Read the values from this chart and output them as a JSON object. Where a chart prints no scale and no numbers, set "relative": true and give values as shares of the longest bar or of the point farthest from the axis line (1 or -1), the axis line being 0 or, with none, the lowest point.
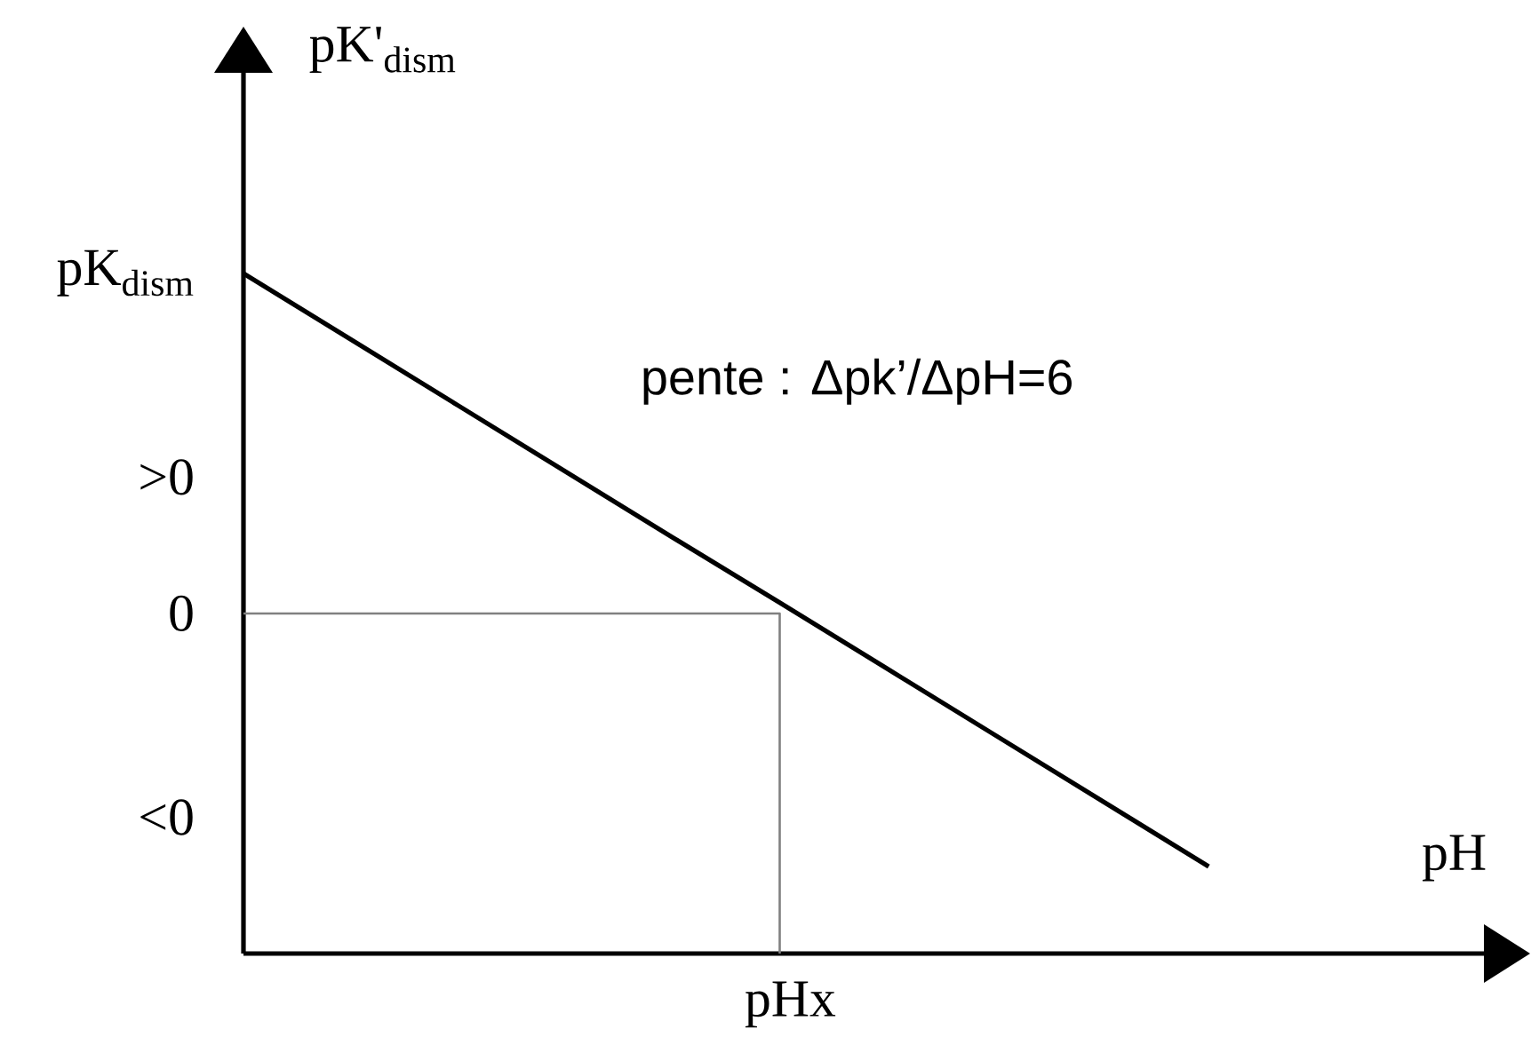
{
  "chart_data": {
    "type": "line",
    "relative": true,
    "xlabel": "pH",
    "ylabel": "pK'$_{dism}$",
    "categories": [
      null,
      null,
      null,
      null,
      null,
      null,
      null,
      null,
      null,
      null
    ],
    "series": [
      {
        "values": [
          1,
          0.903,
          0.806,
          0.709,
          0.612,
          0.516,
          0.419,
          0.322,
          0.225,
          0.128
        ],
        "color": "#000000"
      },
      {
        "type": "step",
        "values": [
          0.5,
          0.5,
          0.5,
          0.5,
          0.5,
          0,
          null,
          null,
          null,
          null
        ],
        "color": "#808080"
      }
    ],
    "annotations": [
      "pente : Δpk’/ΔpH=6",
      "pHx",
      "pK$_{dism}$",
      ">0",
      "0",
      "<0"
    ]
  }
}
